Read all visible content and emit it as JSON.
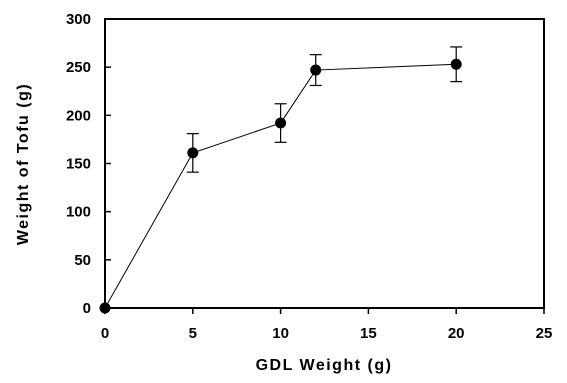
{
  "chart_data": {
    "type": "scatter",
    "title": "",
    "xlabel": "GDL Weight (g)",
    "ylabel": "Weight of Tofu (g)",
    "xlim": [
      0,
      25
    ],
    "ylim": [
      0,
      300
    ],
    "x_ticks": [
      0,
      5,
      10,
      15,
      20,
      25
    ],
    "y_ticks": [
      0,
      50,
      100,
      150,
      200,
      250,
      300
    ],
    "grid": false,
    "legend": "none",
    "series": [
      {
        "x": [
          0,
          5,
          10,
          12,
          20
        ],
        "y": [
          0,
          161,
          192,
          247,
          253
        ],
        "error": [
          0,
          20,
          20,
          16,
          18
        ],
        "marker": "circle",
        "line": true,
        "color": "#000000"
      }
    ]
  }
}
